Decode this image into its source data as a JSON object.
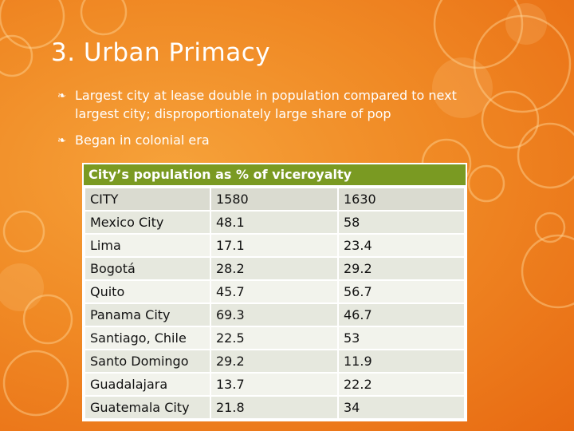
{
  "slide": {
    "title": "3. Urban Primacy",
    "bullets": [
      "Largest city at lease double in population compared to next largest city; disproportionately large share of pop",
      "Began in colonial era"
    ],
    "bullet_icon": "leaf-icon"
  },
  "table": {
    "title": "City’s population as % of viceroyalty",
    "header": [
      "CITY",
      "1580",
      "1630"
    ],
    "rows": [
      [
        "Mexico City",
        "48.1",
        "58"
      ],
      [
        "Lima",
        "17.1",
        "23.4"
      ],
      [
        "Bogotá",
        "28.2",
        "29.2"
      ],
      [
        "Quito",
        "45.7",
        "56.7"
      ],
      [
        "Panama City",
        "69.3",
        "46.7"
      ],
      [
        "Santiago, Chile",
        "22.5",
        "53"
      ],
      [
        "Santo Domingo",
        "29.2",
        "11.9"
      ],
      [
        "Guadalajara",
        "13.7",
        "22.2"
      ],
      [
        "Guatemala City",
        "21.8",
        "34"
      ]
    ]
  },
  "colors": {
    "background": "#f08a25",
    "table_title_bg": "#7a9a22",
    "row_light": "#f2f3ec",
    "row_dark": "#e6e8de"
  }
}
